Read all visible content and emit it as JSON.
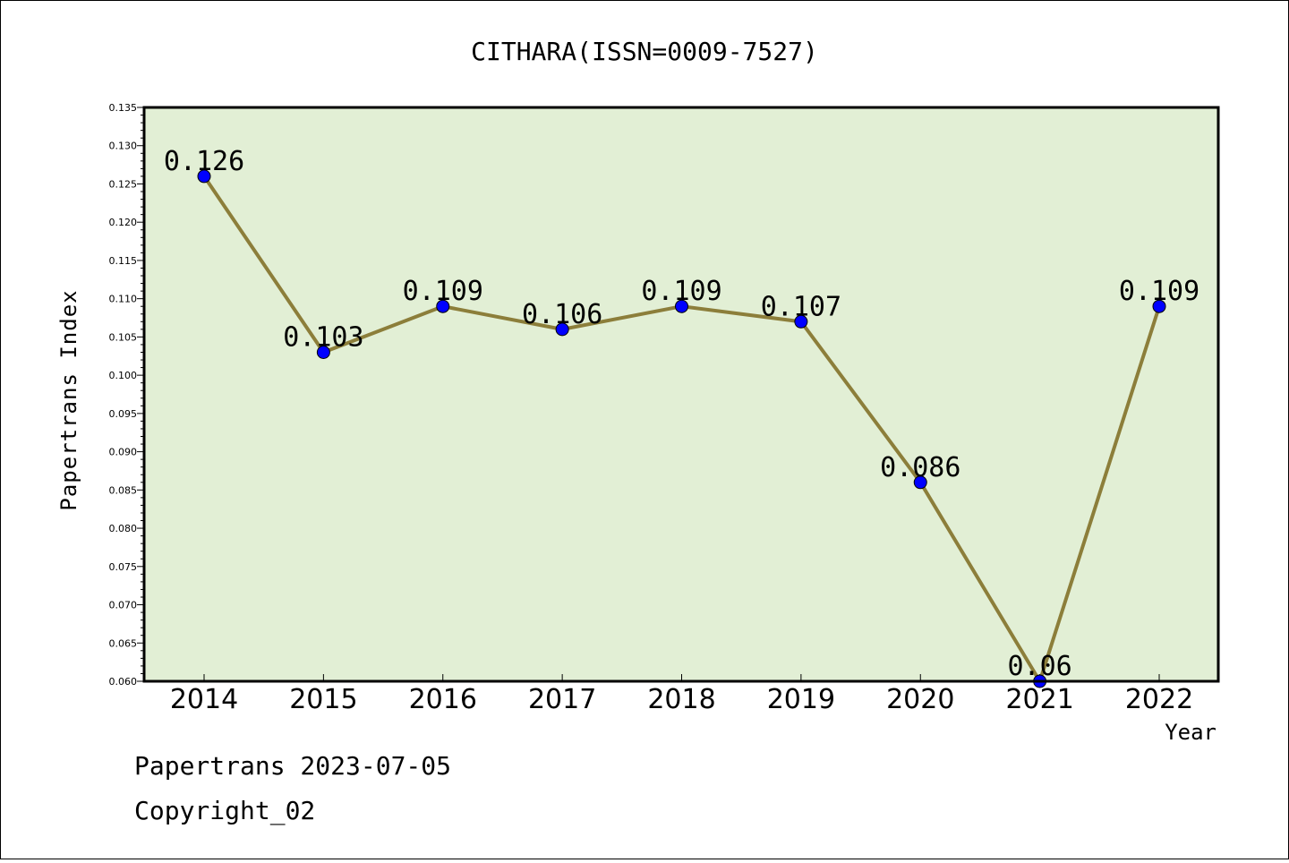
{
  "chart_data": {
    "type": "line",
    "title": "CITHARA(ISSN=0009-7527)",
    "xlabel": "Year",
    "ylabel": "Papertrans Index",
    "categories": [
      "2014",
      "2015",
      "2016",
      "2017",
      "2018",
      "2019",
      "2020",
      "2021",
      "2022"
    ],
    "series": [
      {
        "values": [
          0.126,
          0.103,
          0.109,
          0.106,
          0.109,
          0.107,
          0.086,
          0.06,
          0.109
        ],
        "labels": [
          "0.126",
          "0.103",
          "0.109",
          "0.106",
          "0.109",
          "0.107",
          "0.086",
          "0.06",
          "0.109"
        ]
      }
    ],
    "ylim": [
      0.06,
      0.135
    ],
    "yticks": [
      "0.060",
      "0.065",
      "0.070",
      "0.075",
      "0.080",
      "0.085",
      "0.090",
      "0.095",
      "0.100",
      "0.105",
      "0.110",
      "0.115",
      "0.120",
      "0.125",
      "0.130",
      "0.135"
    ],
    "legend": "none",
    "grid": false,
    "colors": {
      "plot_bg": "#e2efd5",
      "line": "#8c7e3a",
      "marker": "#0000ff"
    }
  },
  "footer": {
    "line1": "Papertrans 2023-07-05",
    "line2": "Copyright_02"
  }
}
